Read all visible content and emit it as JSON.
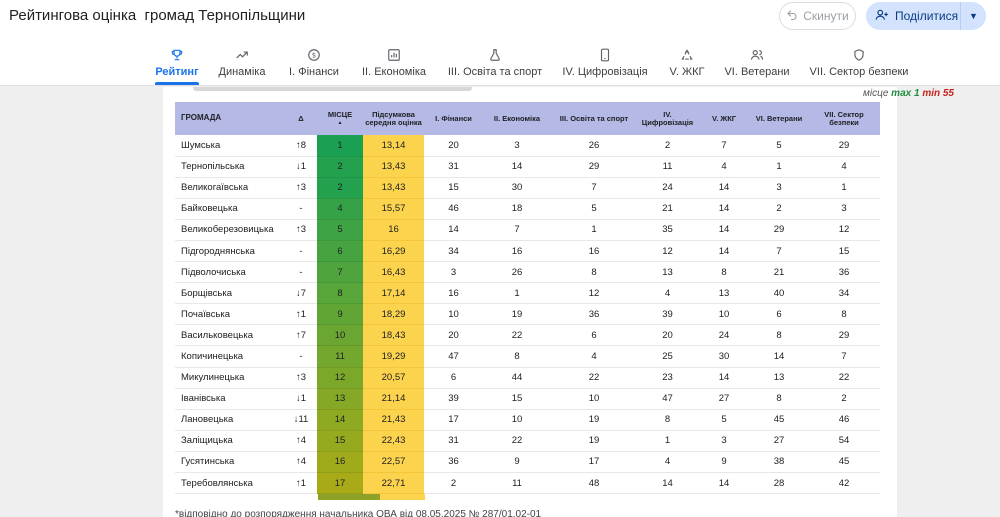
{
  "app": {
    "title": "Рейтингова оцінка  громад Тернопільщини"
  },
  "toolbar": {
    "reset_label": "Скинути",
    "share_label": "Поділитися"
  },
  "nav": {
    "tabs": [
      {
        "label": "Рейтинг",
        "icon": "trophy-icon",
        "active": true
      },
      {
        "label": "Динаміка",
        "icon": "trending-up-icon",
        "active": false
      },
      {
        "label": "I. Фінанси",
        "icon": "dollar-coin-icon",
        "active": false
      },
      {
        "label": "II. Економіка",
        "icon": "bar-chart-icon",
        "active": false
      },
      {
        "label": "III. Освіта та спорт",
        "icon": "flask-icon",
        "active": false
      },
      {
        "label": "IV. Цифровізація",
        "icon": "smartphone-icon",
        "active": false
      },
      {
        "label": "V. ЖКГ",
        "icon": "recycle-icon",
        "active": false
      },
      {
        "label": "VI. Ветерани",
        "icon": "people-icon",
        "active": false
      },
      {
        "label": "VII. Сектор безпеки",
        "icon": "shield-icon",
        "active": false
      }
    ]
  },
  "legend": {
    "prefix": "місце",
    "max_label": "max 1",
    "min_label": "min 55"
  },
  "colors": {
    "accent": "#1a73e8",
    "score_fill": "#fcd34d",
    "up": "#1e8e3e",
    "down": "#d93025",
    "header": "#b4b9e6"
  },
  "table": {
    "headers": {
      "name": "ГРОМАДА",
      "delta": "Δ",
      "place": "МІСЦЕ",
      "sort_indicator": "▲",
      "score": "Підсумкова середня оцінка",
      "finance": "I. Фінанси",
      "economy": "II. Економіка",
      "education": "III. Освіта та спорт",
      "digital": "IV. Цифровізація",
      "housing": "V. ЖКГ",
      "veterans": "VI. Ветерани",
      "security": "VII. Сектор безпеки"
    },
    "rows": [
      {
        "name": "Шумська",
        "delta": "↑8",
        "dir": "up",
        "place": 1,
        "score": "13,14",
        "finance": 20,
        "economy": 3,
        "education": 26,
        "digital": 2,
        "housing": 7,
        "veterans": 5,
        "security": 29
      },
      {
        "name": "Тернопільська",
        "delta": "↓1",
        "dir": "down",
        "place": 2,
        "score": "13,43",
        "finance": 31,
        "economy": 14,
        "education": 29,
        "digital": 11,
        "housing": 4,
        "veterans": 1,
        "security": 4
      },
      {
        "name": "Великогаївська",
        "delta": "↑3",
        "dir": "up",
        "place": 2,
        "score": "13,43",
        "finance": 15,
        "economy": 30,
        "education": 7,
        "digital": 24,
        "housing": 14,
        "veterans": 3,
        "security": 1
      },
      {
        "name": "Байковецька",
        "delta": "-",
        "dir": "eq",
        "place": 4,
        "score": "15,57",
        "finance": 46,
        "economy": 18,
        "education": 5,
        "digital": 21,
        "housing": 14,
        "veterans": 2,
        "security": 3
      },
      {
        "name": "Великоберезовицька",
        "delta": "↑3",
        "dir": "up",
        "place": 5,
        "score": "16",
        "finance": 14,
        "economy": 7,
        "education": 1,
        "digital": 35,
        "housing": 14,
        "veterans": 29,
        "security": 12
      },
      {
        "name": "Підгороднянська",
        "delta": "-",
        "dir": "eq",
        "place": 6,
        "score": "16,29",
        "finance": 34,
        "economy": 16,
        "education": 16,
        "digital": 12,
        "housing": 14,
        "veterans": 7,
        "security": 15
      },
      {
        "name": "Підволочиська",
        "delta": "-",
        "dir": "eq",
        "place": 7,
        "score": "16,43",
        "finance": 3,
        "economy": 26,
        "education": 8,
        "digital": 13,
        "housing": 8,
        "veterans": 21,
        "security": 36
      },
      {
        "name": "Борщівська",
        "delta": "↓7",
        "dir": "down",
        "place": 8,
        "score": "17,14",
        "finance": 16,
        "economy": 1,
        "education": 12,
        "digital": 4,
        "housing": 13,
        "veterans": 40,
        "security": 34
      },
      {
        "name": "Почаївська",
        "delta": "↑1",
        "dir": "up",
        "place": 9,
        "score": "18,29",
        "finance": 10,
        "economy": 19,
        "education": 36,
        "digital": 39,
        "housing": 10,
        "veterans": 6,
        "security": 8
      },
      {
        "name": "Васильковецька",
        "delta": "↑7",
        "dir": "up",
        "place": 10,
        "score": "18,43",
        "finance": 20,
        "economy": 22,
        "education": 6,
        "digital": 20,
        "housing": 24,
        "veterans": 8,
        "security": 29
      },
      {
        "name": "Копичинецька",
        "delta": "-",
        "dir": "eq",
        "place": 11,
        "score": "19,29",
        "finance": 47,
        "economy": 8,
        "education": 4,
        "digital": 25,
        "housing": 30,
        "veterans": 14,
        "security": 7
      },
      {
        "name": "Микулинецька",
        "delta": "↑3",
        "dir": "up",
        "place": 12,
        "score": "20,57",
        "finance": 6,
        "economy": 44,
        "education": 22,
        "digital": 23,
        "housing": 14,
        "veterans": 13,
        "security": 22
      },
      {
        "name": "Іванівська",
        "delta": "↓1",
        "dir": "down",
        "place": 13,
        "score": "21,14",
        "finance": 39,
        "economy": 15,
        "education": 10,
        "digital": 47,
        "housing": 27,
        "veterans": 8,
        "security": 2
      },
      {
        "name": "Лановецька",
        "delta": "↓11",
        "dir": "down",
        "place": 14,
        "score": "21,43",
        "finance": 17,
        "economy": 10,
        "education": 19,
        "digital": 8,
        "housing": 5,
        "veterans": 45,
        "security": 46
      },
      {
        "name": "Заліщицька",
        "delta": "↑4",
        "dir": "up",
        "place": 15,
        "score": "22,43",
        "finance": 31,
        "economy": 22,
        "education": 19,
        "digital": 1,
        "housing": 3,
        "veterans": 27,
        "security": 54
      },
      {
        "name": "Гусятинська",
        "delta": "↑4",
        "dir": "up",
        "place": 16,
        "score": "22,57",
        "finance": 36,
        "economy": 9,
        "education": 17,
        "digital": 4,
        "housing": 9,
        "veterans": 38,
        "security": 45
      },
      {
        "name": "Теребовлянська",
        "delta": "↑1",
        "dir": "up",
        "place": 17,
        "score": "22,71",
        "finance": 2,
        "economy": 11,
        "education": 48,
        "digital": 14,
        "housing": 14,
        "veterans": 28,
        "security": 42
      }
    ]
  },
  "footnote": "*відповідно до розпорядження начальника ОВА від 08.05.2025 № 287/01.02-01"
}
